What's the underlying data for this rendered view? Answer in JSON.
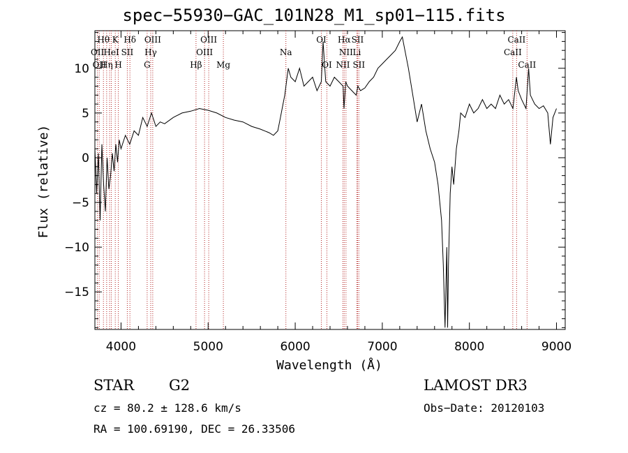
{
  "header": {
    "title": "spec−55930−GAC_101N28_M1_sp01−115.fits"
  },
  "footer": {
    "object_class": "STAR",
    "subclass": "G2",
    "survey": "LAMOST DR3",
    "redshift": "cz = 80.2 ± 128.6 km/s",
    "obs_date": "Obs−Date: 20120103",
    "coords": "RA = 100.69190, DEC =  26.33506"
  },
  "chart_data": {
    "type": "line",
    "title": "spec−55930−GAC_101N28_M1_sp01−115.fits",
    "xlabel": "Wavelength (Å)",
    "ylabel": "Flux (relative)",
    "xlim": [
      3700,
      9100
    ],
    "ylim": [
      -19.2,
      14.2
    ],
    "xticks": [
      4000,
      5000,
      6000,
      7000,
      8000,
      9000
    ],
    "yticks": [
      -15,
      -10,
      -5,
      0,
      5,
      10
    ],
    "ytick_labels": [
      "−15",
      "−10",
      "−5",
      "0",
      "5",
      "10"
    ],
    "line_color": "#000000",
    "marker_color": "#b22222",
    "series": [
      {
        "name": "flux",
        "x": [
          3700,
          3720,
          3740,
          3760,
          3780,
          3800,
          3820,
          3840,
          3860,
          3880,
          3900,
          3920,
          3940,
          3960,
          3980,
          4000,
          4050,
          4100,
          4150,
          4200,
          4250,
          4300,
          4350,
          4400,
          4450,
          4500,
          4600,
          4700,
          4800,
          4900,
          5000,
          5100,
          5200,
          5300,
          5400,
          5500,
          5600,
          5700,
          5750,
          5800,
          5830,
          5860,
          5880,
          5900,
          5920,
          5950,
          6000,
          6050,
          6100,
          6150,
          6200,
          6250,
          6300,
          6320,
          6350,
          6400,
          6450,
          6500,
          6550,
          6560,
          6580,
          6600,
          6650,
          6700,
          6720,
          6750,
          6800,
          6850,
          6900,
          6950,
          7000,
          7050,
          7100,
          7150,
          7200,
          7230,
          7260,
          7300,
          7350,
          7400,
          7450,
          7500,
          7550,
          7600,
          7640,
          7680,
          7700,
          7720,
          7740,
          7750,
          7760,
          7780,
          7800,
          7820,
          7850,
          7880,
          7900,
          7950,
          8000,
          8050,
          8100,
          8150,
          8200,
          8250,
          8300,
          8350,
          8400,
          8450,
          8500,
          8540,
          8560,
          8600,
          8650,
          8680,
          8700,
          8750,
          8800,
          8850,
          8900,
          8930,
          8960,
          9000
        ],
        "y": [
          1.0,
          -4.0,
          0.5,
          -7.0,
          1.5,
          -3.0,
          -6.0,
          0.0,
          -3.5,
          -2.0,
          0.5,
          -1.5,
          1.5,
          -0.5,
          2.0,
          1.0,
          2.5,
          1.5,
          3.0,
          2.5,
          4.5,
          3.5,
          5.0,
          3.5,
          4.0,
          3.8,
          4.5,
          5.0,
          5.2,
          5.5,
          5.3,
          5.0,
          4.5,
          4.2,
          4.0,
          3.5,
          3.2,
          2.8,
          2.5,
          3.0,
          4.5,
          6.0,
          7.0,
          8.5,
          10.0,
          9.0,
          8.5,
          10.0,
          8.0,
          8.5,
          9.0,
          7.5,
          8.5,
          13.0,
          8.5,
          8.0,
          9.0,
          8.5,
          8.0,
          5.5,
          8.5,
          8.0,
          7.5,
          7.0,
          8.0,
          7.5,
          7.8,
          8.5,
          9.0,
          10.0,
          10.5,
          11.0,
          11.5,
          12.0,
          13.0,
          13.5,
          12.0,
          10.0,
          7.0,
          4.0,
          6.0,
          3.0,
          1.0,
          -0.5,
          -3.0,
          -7.0,
          -12.0,
          -19.0,
          -10.0,
          -19.0,
          -12.0,
          -4.0,
          -1.0,
          -3.0,
          1.0,
          3.0,
          5.0,
          4.5,
          6.0,
          5.0,
          5.5,
          6.5,
          5.5,
          6.0,
          5.5,
          7.0,
          6.0,
          6.5,
          5.5,
          9.0,
          7.5,
          6.5,
          5.5,
          10.0,
          7.0,
          6.0,
          5.5,
          5.8,
          5.0,
          1.5,
          4.5,
          5.5
        ]
      }
    ],
    "line_markers": [
      {
        "wl": 3729,
        "labels": [
          "OII"
        ]
      },
      {
        "wl": 3750,
        "labels": [
          "OII"
        ]
      },
      {
        "wl": 3798,
        "labels": [
          "Hθ"
        ]
      },
      {
        "wl": 3835,
        "labels": [
          "Hη"
        ]
      },
      {
        "wl": 3869,
        "labels": [
          "NeIII"
        ]
      },
      {
        "wl": 3889,
        "labels": [
          "HeI"
        ]
      },
      {
        "wl": 3934,
        "labels": [
          "K"
        ]
      },
      {
        "wl": 3969,
        "labels": [
          "H"
        ]
      },
      {
        "wl": 4072,
        "labels": [
          "SII"
        ]
      },
      {
        "wl": 4102,
        "labels": [
          "Hδ"
        ]
      },
      {
        "wl": 4300,
        "labels": [
          "G"
        ]
      },
      {
        "wl": 4341,
        "labels": [
          "Hγ"
        ]
      },
      {
        "wl": 4364,
        "labels": [
          "OIII"
        ]
      },
      {
        "wl": 4861,
        "labels": [
          "Hβ"
        ]
      },
      {
        "wl": 4959,
        "labels": [
          "OIII"
        ]
      },
      {
        "wl": 5007,
        "labels": [
          "OIII"
        ]
      },
      {
        "wl": 5175,
        "labels": [
          "Mg"
        ]
      },
      {
        "wl": 5893,
        "labels": [
          "Na"
        ]
      },
      {
        "wl": 6300,
        "labels": [
          "OI"
        ]
      },
      {
        "wl": 6364,
        "labels": [
          "OI"
        ]
      },
      {
        "wl": 6548,
        "labels": [
          "NII"
        ]
      },
      {
        "wl": 6563,
        "labels": [
          "Hα"
        ]
      },
      {
        "wl": 6583,
        "labels": [
          "NII"
        ]
      },
      {
        "wl": 6708,
        "labels": [
          "Li"
        ]
      },
      {
        "wl": 6716,
        "labels": [
          "SII"
        ]
      },
      {
        "wl": 6731,
        "labels": [
          "SII"
        ]
      },
      {
        "wl": 8498,
        "labels": [
          "CaII"
        ]
      },
      {
        "wl": 8542,
        "labels": [
          "CaII"
        ]
      },
      {
        "wl": 8662,
        "labels": [
          "CaII"
        ]
      }
    ],
    "line_labels": [
      {
        "text": "Hθ",
        "wl": 3798,
        "row": 0
      },
      {
        "text": "K",
        "wl": 3934,
        "row": 0
      },
      {
        "text": "Hδ",
        "wl": 4102,
        "row": 0
      },
      {
        "text": "OIII",
        "wl": 4364,
        "row": 0
      },
      {
        "text": "OIII",
        "wl": 5007,
        "row": 0
      },
      {
        "text": "OI",
        "wl": 6300,
        "row": 0
      },
      {
        "text": "Hα",
        "wl": 6563,
        "row": 0
      },
      {
        "text": "SII",
        "wl": 6716,
        "row": 0
      },
      {
        "text": "CaII",
        "wl": 8542,
        "row": 0
      },
      {
        "text": "OII",
        "wl": 3729,
        "row": 1
      },
      {
        "text": "HeI",
        "wl": 3889,
        "row": 1
      },
      {
        "text": "SII",
        "wl": 4072,
        "row": 1
      },
      {
        "text": "Hγ",
        "wl": 4341,
        "row": 1
      },
      {
        "text": "OIII",
        "wl": 4959,
        "row": 1
      },
      {
        "text": "Na",
        "wl": 5893,
        "row": 1
      },
      {
        "text": "NII",
        "wl": 6583,
        "row": 1
      },
      {
        "text": "Li",
        "wl": 6708,
        "row": 1
      },
      {
        "text": "CaII",
        "wl": 8498,
        "row": 1
      },
      {
        "text": "OII",
        "wl": 3750,
        "row": 2
      },
      {
        "text": "Hη",
        "wl": 3835,
        "row": 2
      },
      {
        "text": "H",
        "wl": 3969,
        "row": 2
      },
      {
        "text": "G",
        "wl": 4300,
        "row": 2
      },
      {
        "text": "Hβ",
        "wl": 4861,
        "row": 2
      },
      {
        "text": "Mg",
        "wl": 5175,
        "row": 2
      },
      {
        "text": "OI",
        "wl": 6364,
        "row": 2
      },
      {
        "text": "NII",
        "wl": 6548,
        "row": 2
      },
      {
        "text": "SII",
        "wl": 6731,
        "row": 2
      },
      {
        "text": "CaII",
        "wl": 8662,
        "row": 2
      }
    ]
  }
}
